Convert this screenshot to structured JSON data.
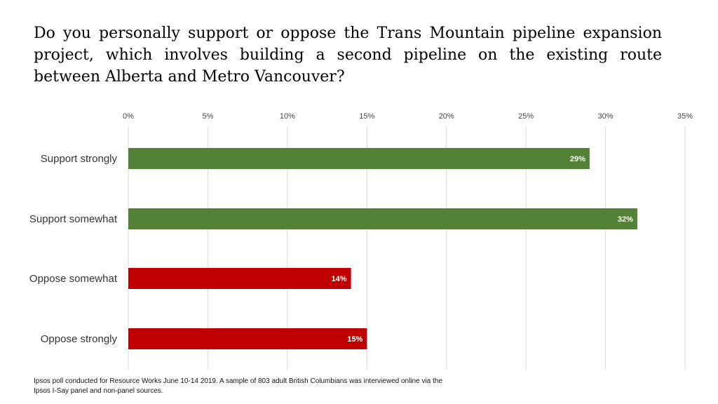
{
  "title": "Do you personally support or oppose the Trans Mountain pipeline expansion project, which involves building a second pipeline on the existing route between Alberta and Metro Vancouver?",
  "footnote": {
    "line1": "Ipsos poll conducted for Resource Works June 10-14 2019. A sample of 803 adult British Columbians was interviewed online via the",
    "line2": "Ipsos I-Say panel and non-panel sources."
  },
  "colors": {
    "support": "#538135",
    "oppose": "#c00000",
    "grid": "#d9d9d9"
  },
  "chart_data": {
    "type": "bar",
    "orientation": "horizontal",
    "title": "Do you personally support or oppose the Trans Mountain pipeline expansion project, which involves building a second pipeline on the existing route between Alberta and Metro Vancouver?",
    "categories": [
      "Support strongly",
      "Support somewhat",
      "Oppose somewhat",
      "Oppose strongly"
    ],
    "values": [
      29,
      32,
      14,
      15
    ],
    "data_labels": [
      "29%",
      "32%",
      "14%",
      "15%"
    ],
    "groups": [
      "support",
      "support",
      "oppose",
      "oppose"
    ],
    "xlim": [
      0,
      35
    ],
    "ticks": [
      0,
      5,
      10,
      15,
      20,
      25,
      30,
      35
    ],
    "tick_labels": [
      "0%",
      "5%",
      "10%",
      "15%",
      "20%",
      "25%",
      "30%",
      "35%"
    ],
    "xaxis_position": "top",
    "grid": true,
    "xlabel": "",
    "ylabel": ""
  }
}
